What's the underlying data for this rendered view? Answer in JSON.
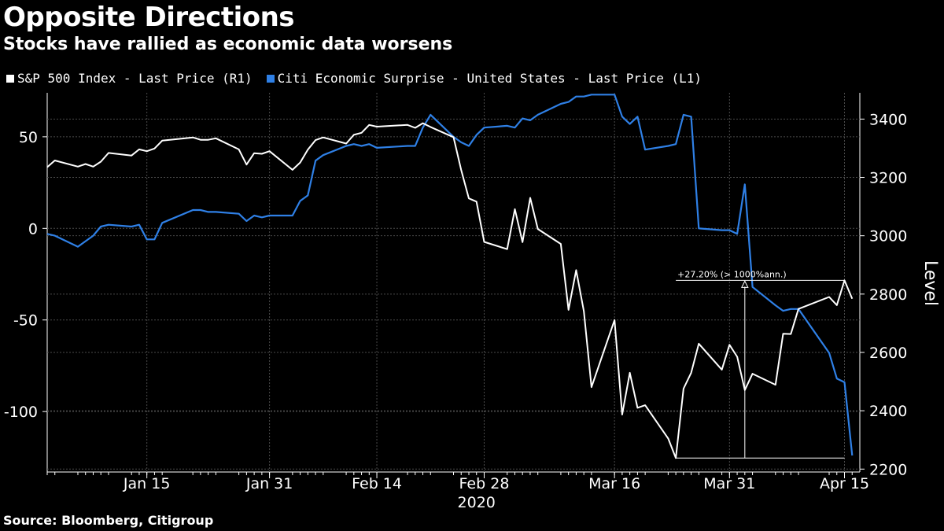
{
  "title": "Opposite Directions",
  "subtitle": "Stocks have rallied as economic data worsens",
  "source": "Source: Bloomberg, Citigroup",
  "colors": {
    "sp500": "#ffffff",
    "citi": "#2f80e6",
    "grid": "#4a4a4a",
    "background": "#000000"
  },
  "chart_data": {
    "type": "line",
    "year_label": "2020",
    "x_tick_labels": [
      "Jan 15",
      "Jan 31",
      "Feb 14",
      "Feb 28",
      "Mar 16",
      "Mar 31",
      "Apr 15"
    ],
    "left_axis": {
      "ticks": [
        "50",
        "0",
        "-50",
        "-100"
      ],
      "tick_values": [
        50,
        0,
        -50,
        -100
      ],
      "range": [
        -133,
        74
      ]
    },
    "right_axis": {
      "label": "Level",
      "ticks": [
        "3400",
        "3200",
        "3000",
        "2800",
        "2600",
        "2400",
        "2200"
      ],
      "tick_values": [
        3400,
        3200,
        3000,
        2800,
        2600,
        2400,
        2200
      ],
      "range": [
        2190,
        3490
      ]
    },
    "annotation": {
      "text": "+27.20% (> 1000%ann.)"
    },
    "series": [
      {
        "name": "S&P 500 Index - Last Price (R1)",
        "axis": "right",
        "values": [
          3235,
          3258,
          3237,
          3246,
          3237,
          3254,
          3284,
          3275,
          3296,
          3290,
          3299,
          3326,
          3337,
          3329,
          3329,
          3334,
          3296,
          3244,
          3283,
          3281,
          3290,
          3226,
          3251,
          3295,
          3328,
          3337,
          3316,
          3346,
          3353,
          3380,
          3374,
          3380,
          3370,
          3386,
          3373,
          3338,
          3226,
          3128,
          3117,
          2979,
          2954,
          3091,
          2978,
          3130,
          3023,
          2972,
          2746,
          2882,
          2741,
          2481,
          2711,
          2387,
          2530,
          2410,
          2419,
          2305,
          2238,
          2476,
          2530,
          2630,
          2541,
          2626,
          2585,
          2471,
          2527,
          2489,
          2664,
          2663,
          2749,
          2790,
          2762,
          2847,
          2784
        ],
        "dates": [
          "2020-01-02",
          "2020-01-03",
          "2020-01-06",
          "2020-01-07",
          "2020-01-08",
          "2020-01-09",
          "2020-01-10",
          "2020-01-13",
          "2020-01-14",
          "2020-01-15",
          "2020-01-16",
          "2020-01-17",
          "2020-01-21",
          "2020-01-22",
          "2020-01-23",
          "2020-01-24",
          "2020-01-27",
          "2020-01-28",
          "2020-01-29",
          "2020-01-30",
          "2020-01-31",
          "2020-02-03",
          "2020-02-04",
          "2020-02-05",
          "2020-02-06",
          "2020-02-07",
          "2020-02-10",
          "2020-02-11",
          "2020-02-12",
          "2020-02-13",
          "2020-02-14",
          "2020-02-18",
          "2020-02-19",
          "2020-02-20",
          "2020-02-21",
          "2020-02-24",
          "2020-02-25",
          "2020-02-26",
          "2020-02-27",
          "2020-02-28",
          "2020-03-02",
          "2020-03-03",
          "2020-03-04",
          "2020-03-05",
          "2020-03-06",
          "2020-03-09",
          "2020-03-10",
          "2020-03-11",
          "2020-03-12",
          "2020-03-13",
          "2020-03-16",
          "2020-03-17",
          "2020-03-18",
          "2020-03-19",
          "2020-03-20",
          "2020-03-23",
          "2020-03-24",
          "2020-03-25",
          "2020-03-26",
          "2020-03-27",
          "2020-03-30",
          "2020-03-31",
          "2020-04-01",
          "2020-04-02",
          "2020-04-03",
          "2020-04-06",
          "2020-04-07",
          "2020-04-08",
          "2020-04-09",
          "2020-04-13",
          "2020-04-14",
          "2020-04-15",
          "2020-04-16"
        ]
      },
      {
        "name": "Citi Economic Surprise - United States - Last Price (L1)",
        "axis": "left",
        "dates": [
          "2020-01-02",
          "2020-01-03",
          "2020-01-06",
          "2020-01-07",
          "2020-01-08",
          "2020-01-09",
          "2020-01-10",
          "2020-01-13",
          "2020-01-14",
          "2020-01-15",
          "2020-01-16",
          "2020-01-17",
          "2020-01-21",
          "2020-01-22",
          "2020-01-23",
          "2020-01-24",
          "2020-01-27",
          "2020-01-28",
          "2020-01-29",
          "2020-01-30",
          "2020-01-31",
          "2020-02-03",
          "2020-02-04",
          "2020-02-05",
          "2020-02-06",
          "2020-02-07",
          "2020-02-10",
          "2020-02-11",
          "2020-02-12",
          "2020-02-13",
          "2020-02-14",
          "2020-02-18",
          "2020-02-19",
          "2020-02-20",
          "2020-02-21",
          "2020-02-24",
          "2020-02-25",
          "2020-02-26",
          "2020-02-27",
          "2020-02-28",
          "2020-03-02",
          "2020-03-03",
          "2020-03-04",
          "2020-03-05",
          "2020-03-06",
          "2020-03-09",
          "2020-03-10",
          "2020-03-11",
          "2020-03-12",
          "2020-03-13",
          "2020-03-16",
          "2020-03-17",
          "2020-03-18",
          "2020-03-19",
          "2020-03-20",
          "2020-03-23",
          "2020-03-24",
          "2020-03-25",
          "2020-03-26",
          "2020-03-27",
          "2020-03-30",
          "2020-03-31",
          "2020-04-01",
          "2020-04-02",
          "2020-04-03",
          "2020-04-06",
          "2020-04-07",
          "2020-04-08",
          "2020-04-09",
          "2020-04-13",
          "2020-04-14",
          "2020-04-15",
          "2020-04-16"
        ],
        "values": [
          -3,
          -4,
          -10,
          -7,
          -4,
          1,
          2,
          1,
          2,
          -6,
          -6,
          3,
          10,
          10,
          9,
          9,
          8,
          4,
          7,
          6,
          7,
          7,
          15,
          18,
          37,
          40,
          45,
          46,
          45,
          46,
          44,
          45,
          45,
          55,
          62,
          50,
          47,
          45,
          51,
          55,
          56,
          55,
          60,
          59,
          62,
          68,
          69,
          72,
          72,
          73,
          73,
          61,
          57,
          61,
          43,
          45,
          46,
          62,
          61,
          0,
          -1,
          -1,
          -3,
          24,
          -32,
          -42,
          -45,
          -44,
          -44,
          -68,
          -82,
          -84,
          -124
        ]
      }
    ]
  }
}
